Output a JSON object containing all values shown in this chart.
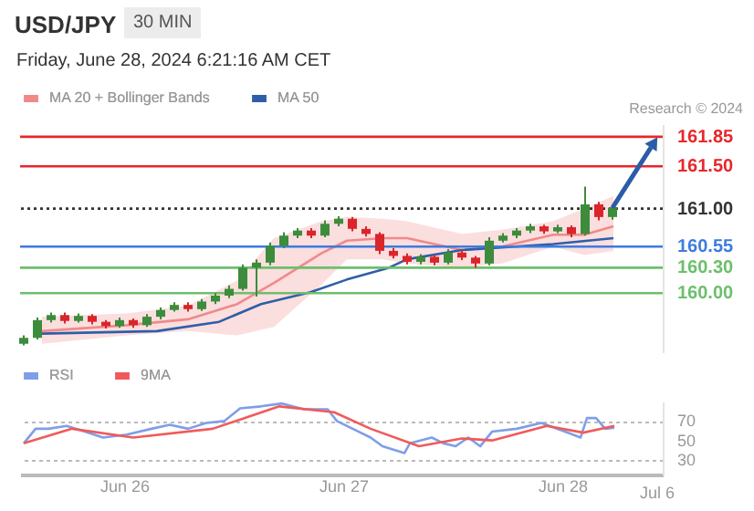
{
  "chart_data": [
    {
      "type": "candlestick",
      "title": "USD/JPY",
      "subtitle": "Friday, June 28, 2024 6:21:16 AM CET",
      "annotations": [
        "30 MIN",
        "Research © 2024"
      ],
      "x": [
        "2024-06-25T13:00",
        "2024-06-25T14:30",
        "2024-06-25T16:00",
        "2024-06-25T17:30",
        "2024-06-25T19:00",
        "2024-06-25T20:30",
        "2024-06-25T22:00",
        "2024-06-25T23:30",
        "2024-06-26T01:00",
        "2024-06-26T02:30",
        "2024-06-26T04:00",
        "2024-06-26T05:30",
        "2024-06-26T07:00",
        "2024-06-26T08:30",
        "2024-06-26T10:00",
        "2024-06-26T11:30",
        "2024-06-26T13:00",
        "2024-06-26T14:30",
        "2024-06-26T16:00",
        "2024-06-26T17:30",
        "2024-06-26T19:00",
        "2024-06-26T20:30",
        "2024-06-26T22:00",
        "2024-06-26T23:30",
        "2024-06-27T01:00",
        "2024-06-27T02:30",
        "2024-06-27T04:00",
        "2024-06-27T05:30",
        "2024-06-27T07:00",
        "2024-06-27T08:30",
        "2024-06-27T10:00",
        "2024-06-27T11:30",
        "2024-06-27T13:00",
        "2024-06-27T14:30",
        "2024-06-27T16:00",
        "2024-06-27T17:30",
        "2024-06-27T19:00",
        "2024-06-27T20:30",
        "2024-06-27T22:00",
        "2024-06-27T23:30",
        "2024-06-28T01:00",
        "2024-06-28T02:30",
        "2024-06-28T04:00",
        "2024-06-28T05:30"
      ],
      "ohlc": [
        [
          159.4,
          159.5,
          159.38,
          159.47
        ],
        [
          159.47,
          159.71,
          159.45,
          159.68
        ],
        [
          159.68,
          159.77,
          159.65,
          159.74
        ],
        [
          159.74,
          159.77,
          159.64,
          159.67
        ],
        [
          159.67,
          159.76,
          159.65,
          159.73
        ],
        [
          159.73,
          159.75,
          159.63,
          159.66
        ],
        [
          159.66,
          159.68,
          159.58,
          159.61
        ],
        [
          159.61,
          159.71,
          159.59,
          159.68
        ],
        [
          159.68,
          159.7,
          159.59,
          159.62
        ],
        [
          159.62,
          159.75,
          159.6,
          159.72
        ],
        [
          159.72,
          159.83,
          159.69,
          159.8
        ],
        [
          159.8,
          159.89,
          159.78,
          159.86
        ],
        [
          159.86,
          159.89,
          159.78,
          159.81
        ],
        [
          159.81,
          159.93,
          159.79,
          159.9
        ],
        [
          159.9,
          160.0,
          159.87,
          159.97
        ],
        [
          159.97,
          160.09,
          159.94,
          160.05
        ],
        [
          160.05,
          160.34,
          160.03,
          160.3
        ],
        [
          160.3,
          160.4,
          159.96,
          160.36
        ],
        [
          160.36,
          160.6,
          160.33,
          160.56
        ],
        [
          160.56,
          160.72,
          160.53,
          160.68
        ],
        [
          160.68,
          160.77,
          160.65,
          160.74
        ],
        [
          160.74,
          160.77,
          160.65,
          160.68
        ],
        [
          160.68,
          160.86,
          160.66,
          160.82
        ],
        [
          160.82,
          160.91,
          160.79,
          160.88
        ],
        [
          160.88,
          160.9,
          160.73,
          160.76
        ],
        [
          160.76,
          160.79,
          160.67,
          160.7
        ],
        [
          160.7,
          160.72,
          160.46,
          160.5
        ],
        [
          160.5,
          160.53,
          160.41,
          160.44
        ],
        [
          160.44,
          160.47,
          160.34,
          160.37
        ],
        [
          160.37,
          160.46,
          160.34,
          160.43
        ],
        [
          160.43,
          160.45,
          160.33,
          160.36
        ],
        [
          160.36,
          160.52,
          160.34,
          160.48
        ],
        [
          160.48,
          160.51,
          160.39,
          160.42
        ],
        [
          160.42,
          160.44,
          160.3,
          160.35
        ],
        [
          160.35,
          160.66,
          160.33,
          160.62
        ],
        [
          160.62,
          160.71,
          160.6,
          160.68
        ],
        [
          160.68,
          160.77,
          160.65,
          160.74
        ],
        [
          160.74,
          160.82,
          160.71,
          160.79
        ],
        [
          160.79,
          160.81,
          160.7,
          160.73
        ],
        [
          160.73,
          160.81,
          160.71,
          160.78
        ],
        [
          160.78,
          160.8,
          160.66,
          160.7
        ],
        [
          160.7,
          161.26,
          160.68,
          161.05
        ],
        [
          161.05,
          161.08,
          160.86,
          160.9
        ],
        [
          160.9,
          161.04,
          160.87,
          161.01
        ]
      ],
      "series": [
        {
          "name": "MA 20 + Bollinger Bands",
          "type": "line",
          "color": "#f08a8a",
          "x": [
            "2024-06-25T15:00",
            "2024-06-26T00:18",
            "2024-06-26T07:00",
            "2024-06-26T12:24",
            "2024-06-26T16:24",
            "2024-06-26T21:36",
            "2024-06-27T00:24",
            "2024-06-27T04:24",
            "2024-06-27T07:00",
            "2024-06-27T13:00",
            "2024-06-27T17:24",
            "2024-06-27T23:00",
            "2024-06-28T02:24",
            "2024-06-28T05:36"
          ],
          "values": [
            159.55,
            159.62,
            159.69,
            159.87,
            160.12,
            160.47,
            160.62,
            160.65,
            160.65,
            160.51,
            160.55,
            160.69,
            160.69,
            160.79
          ],
          "lower": [
            159.4,
            159.5,
            159.55,
            159.5,
            159.6,
            160.1,
            160.4,
            160.4,
            160.35,
            160.3,
            160.35,
            160.55,
            160.45,
            160.5
          ],
          "upper": [
            159.72,
            159.76,
            159.85,
            160.15,
            160.65,
            160.85,
            160.9,
            160.88,
            160.85,
            160.7,
            160.75,
            160.85,
            161.0,
            161.15
          ]
        },
        {
          "name": "MA 50",
          "type": "line",
          "color": "#2f5ea8",
          "x": [
            "2024-06-25T15:00",
            "2024-06-26T03:36",
            "2024-06-26T10:24",
            "2024-06-26T15:00",
            "2024-06-26T20:24",
            "2024-06-27T00:24",
            "2024-06-27T05:00",
            "2024-06-27T07:00",
            "2024-06-27T13:00",
            "2024-06-27T23:00",
            "2024-06-28T05:36"
          ],
          "values": [
            159.52,
            159.55,
            159.66,
            159.87,
            160.01,
            160.16,
            160.3,
            160.4,
            160.51,
            160.58,
            160.65
          ]
        }
      ],
      "ref_lines": [
        {
          "axis": "y",
          "value": 161.85,
          "color": "#e8262b"
        },
        {
          "axis": "y",
          "value": 161.5,
          "color": "#e8262b"
        },
        {
          "axis": "y",
          "value": 161.0,
          "color": "#333333",
          "line_style": "dotted"
        },
        {
          "axis": "y",
          "value": 160.55,
          "color": "#3d7be0"
        },
        {
          "axis": "y",
          "value": 160.3,
          "color": "#6cbf6c"
        },
        {
          "axis": "y",
          "value": 160.0,
          "color": "#6cbf6c"
        }
      ],
      "xlim": [
        "2024-06-25T12:36",
        "2024-06-28T11:00"
      ],
      "ylim": [
        159.3,
        162.0
      ],
      "yticks": [
        {
          "value": 160.0,
          "label": "160.00"
        },
        {
          "value": 160.3,
          "label": "160.30"
        },
        {
          "value": 160.55,
          "label": "160.55"
        },
        {
          "value": 161.0,
          "label": "161.00"
        },
        {
          "value": 161.5,
          "label": "161.50"
        },
        161.85
      ],
      "tick_labels": "y",
      "legend": "top left"
    },
    {
      "type": "line",
      "series": [
        {
          "name": "RSI",
          "color": "#7f9ee8",
          "x": [
            "2024-06-25T13:00",
            "2024-06-25T14:18",
            "2024-06-25T15:42",
            "2024-06-25T17:42",
            "2024-06-25T19:42",
            "2024-06-25T21:42",
            "2024-06-26T00:18",
            "2024-06-26T03:00",
            "2024-06-26T05:00",
            "2024-06-26T07:00",
            "2024-06-26T09:00",
            "2024-06-26T11:00",
            "2024-06-26T12:42",
            "2024-06-26T15:00",
            "2024-06-26T17:18",
            "2024-06-26T19:42",
            "2024-06-26T22:18",
            "2024-06-26T23:18",
            "2024-06-27T01:42",
            "2024-06-27T03:00",
            "2024-06-27T04:18",
            "2024-06-27T06:42",
            "2024-06-27T07:18",
            "2024-06-27T09:42",
            "2024-06-27T11:00",
            "2024-06-27T12:18",
            "2024-06-27T13:42",
            "2024-06-27T15:00",
            "2024-06-27T16:18",
            "2024-06-27T19:00",
            "2024-06-27T21:42",
            "2024-06-28T00:18",
            "2024-06-28T02:00",
            "2024-06-28T02:42",
            "2024-06-28T03:42",
            "2024-06-28T04:42",
            "2024-06-28T05:42"
          ],
          "values": [
            47,
            62,
            62,
            65,
            59,
            53,
            56,
            62,
            66,
            62,
            68,
            70,
            83,
            85,
            88,
            82,
            82,
            70,
            59,
            53,
            44,
            37,
            47,
            53,
            47,
            44,
            53,
            44,
            59,
            62,
            68,
            59,
            53,
            73,
            73,
            62,
            63
          ]
        },
        {
          "name": "9MA",
          "color": "#f05a5a",
          "x": [
            "2024-06-25T13:00",
            "2024-06-25T18:18",
            "2024-06-26T01:00",
            "2024-06-26T09:42",
            "2024-06-26T17:00",
            "2024-06-26T23:00",
            "2024-06-27T03:00",
            "2024-06-27T08:18",
            "2024-06-27T13:00",
            "2024-06-27T16:18",
            "2024-06-27T22:18",
            "2024-06-28T02:18",
            "2024-06-28T05:42"
          ],
          "values": [
            47,
            62,
            53,
            62,
            85,
            79,
            62,
            44,
            52,
            50,
            65,
            58,
            65
          ]
        }
      ],
      "xlim": [
        "2024-06-25T12:36",
        "2024-06-28T11:00"
      ],
      "xticks": [
        {
          "value": "2024-06-26",
          "label": "Jun 26"
        },
        {
          "value": "2024-06-27",
          "label": "Jun 27"
        },
        {
          "value": "2024-06-28",
          "label": "Jun 28"
        }
      ],
      "annotations": [
        "Jul 6"
      ],
      "ylim": [
        15,
        90
      ],
      "yticks": [
        30,
        50,
        70
      ],
      "grid": "y",
      "legend": "top left"
    }
  ]
}
